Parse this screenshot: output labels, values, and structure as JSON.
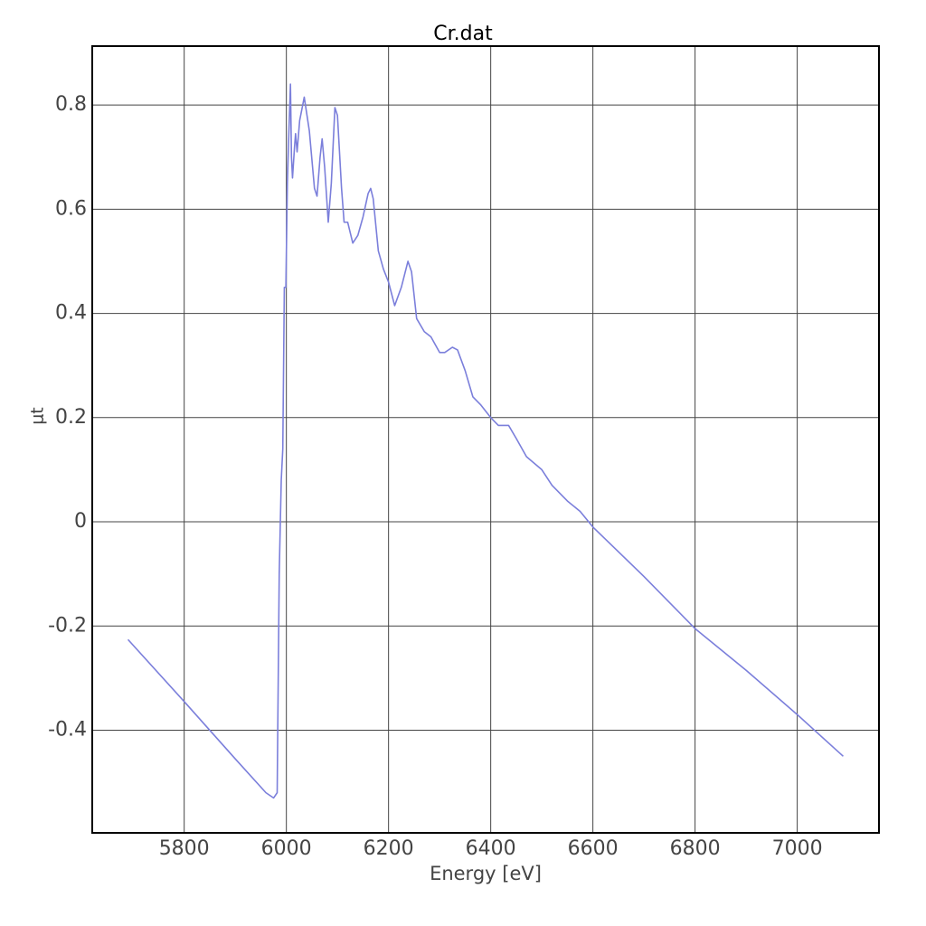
{
  "chart_data": {
    "type": "line",
    "title": "Cr.dat",
    "x_label": "Energy [eV]",
    "y_label": "μt",
    "xlim": [
      5620,
      7160
    ],
    "ylim": [
      -0.597,
      0.913
    ],
    "xticks": [
      5800,
      6000,
      6200,
      6400,
      6600,
      6800,
      7000
    ],
    "yticks": [
      -0.4,
      -0.2,
      0,
      0.2,
      0.4,
      0.6,
      0.8
    ],
    "grid": true,
    "x": [
      5690,
      5800,
      5900,
      5960,
      5975,
      5982,
      5986,
      5990,
      5993,
      5996,
      5999,
      6002,
      6005,
      6008,
      6010,
      6012,
      6016,
      6018,
      6021,
      6026,
      6035,
      6045,
      6055,
      6060,
      6066,
      6070,
      6075,
      6082,
      6088,
      6095,
      6100,
      6108,
      6113,
      6120,
      6130,
      6140,
      6150,
      6160,
      6165,
      6170,
      6180,
      6190,
      6200,
      6212,
      6225,
      6238,
      6245,
      6255,
      6270,
      6283,
      6300,
      6310,
      6325,
      6335,
      6350,
      6365,
      6380,
      6400,
      6415,
      6435,
      6450,
      6470,
      6500,
      6520,
      6550,
      6575,
      6600,
      6700,
      6800,
      6900,
      7000,
      7090
    ],
    "series": [
      {
        "name": "Cr.dat",
        "color": "#7b7fdb",
        "values": [
          -0.226,
          -0.345,
          -0.455,
          -0.52,
          -0.53,
          -0.52,
          -0.1,
          0.08,
          0.14,
          0.45,
          0.45,
          0.65,
          0.75,
          0.84,
          0.7,
          0.66,
          0.72,
          0.745,
          0.71,
          0.77,
          0.815,
          0.75,
          0.64,
          0.625,
          0.7,
          0.735,
          0.68,
          0.575,
          0.65,
          0.795,
          0.78,
          0.64,
          0.575,
          0.575,
          0.535,
          0.55,
          0.585,
          0.63,
          0.64,
          0.62,
          0.52,
          0.485,
          0.46,
          0.415,
          0.45,
          0.5,
          0.48,
          0.39,
          0.365,
          0.355,
          0.325,
          0.325,
          0.335,
          0.33,
          0.29,
          0.24,
          0.225,
          0.2,
          0.185,
          0.185,
          0.16,
          0.125,
          0.1,
          0.07,
          0.04,
          0.02,
          -0.01,
          -0.105,
          -0.205,
          -0.285,
          -0.37,
          -0.45
        ]
      }
    ]
  }
}
